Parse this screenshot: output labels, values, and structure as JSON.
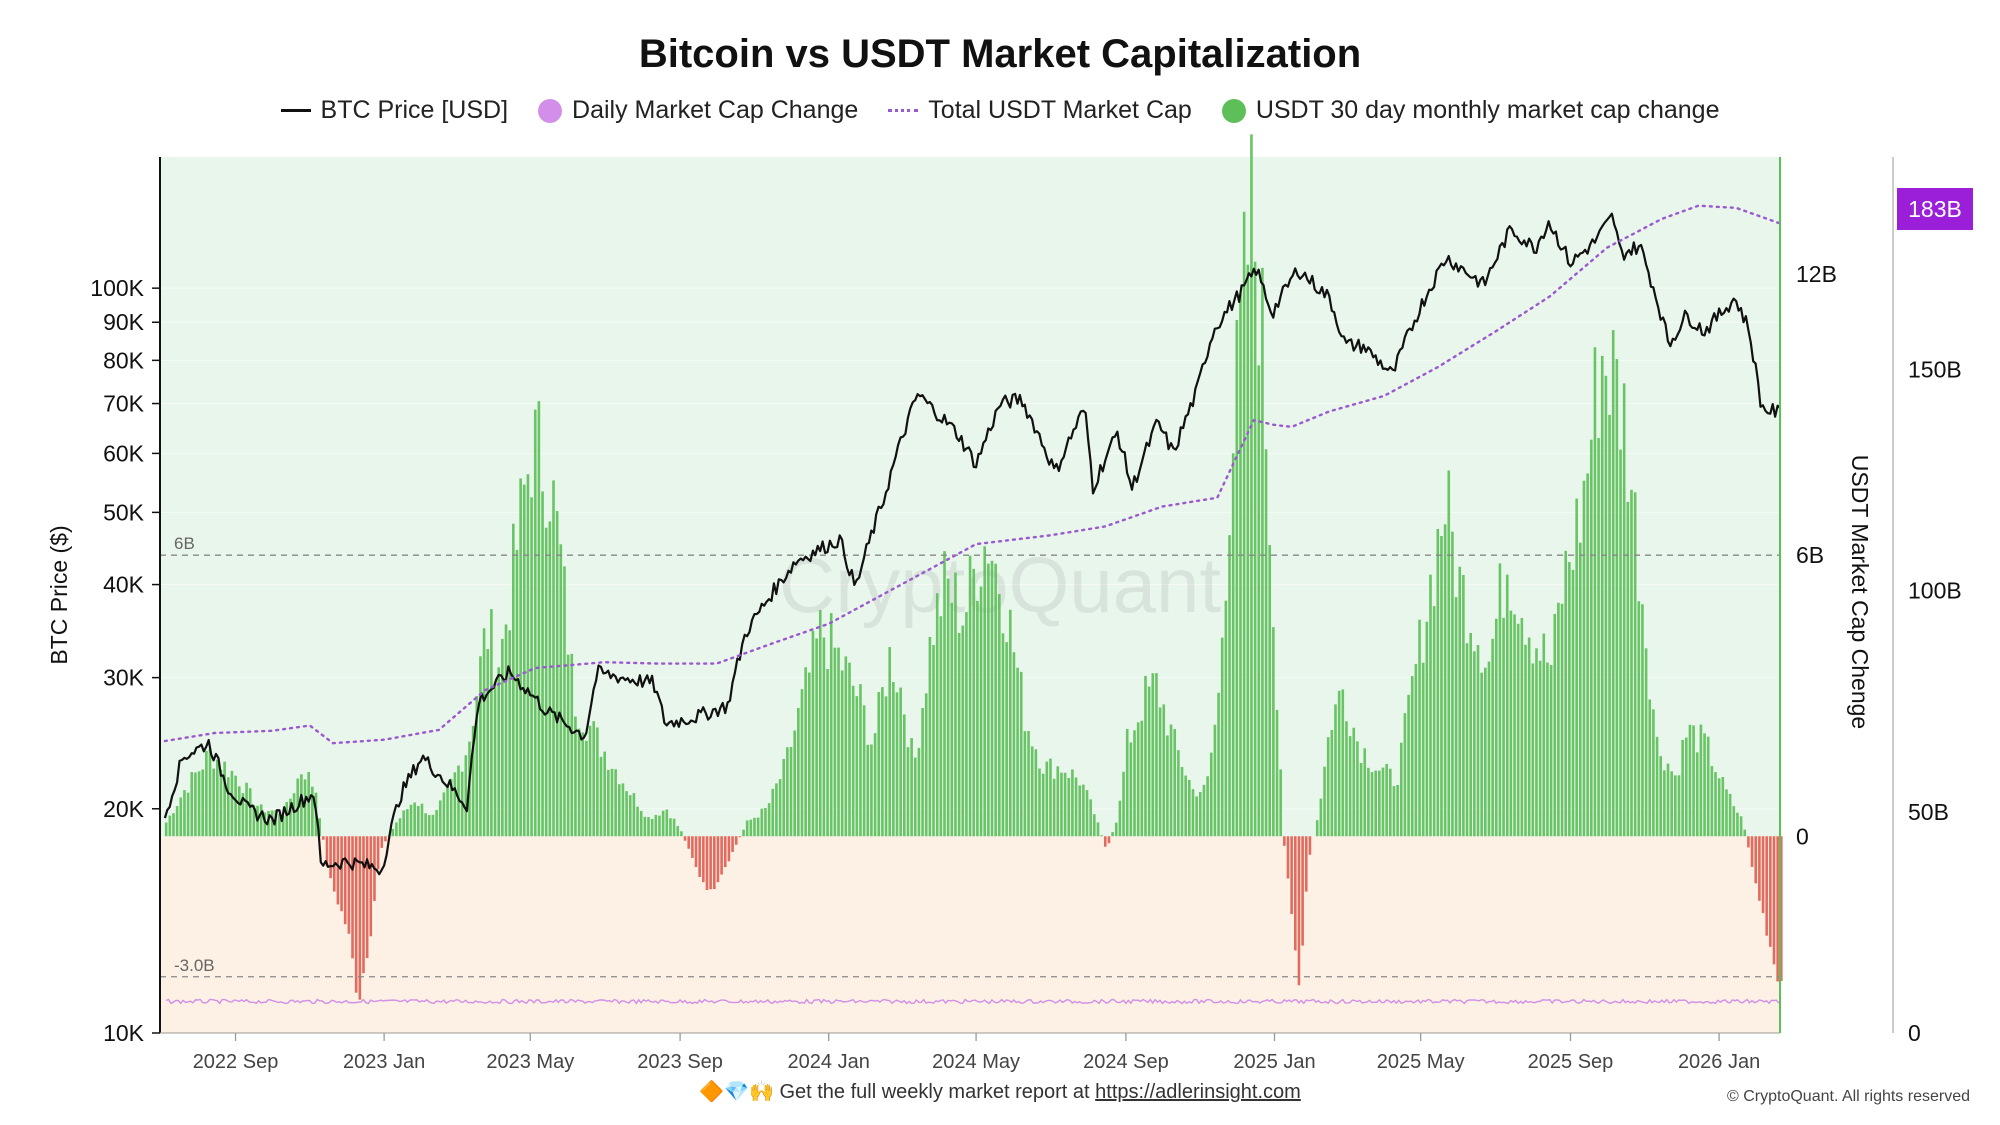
{
  "title": "Bitcoin vs USDT Market Capitalization",
  "legend": [
    {
      "label": "BTC Price [USD]",
      "kind": "line",
      "color": "#111111"
    },
    {
      "label": "Daily Market Cap Change",
      "kind": "dot",
      "color": "#d28ee8"
    },
    {
      "label": "Total USDT Market Cap",
      "kind": "dotted",
      "color": "#9b59d0"
    },
    {
      "label": "USDT 30 day monthly market cap change",
      "kind": "dot",
      "color": "#5cbf58"
    }
  ],
  "footer": {
    "emoji": "🔶💎🙌",
    "text": "Get the full weekly market report at",
    "link": "https://adlerinsight.com"
  },
  "copyright": "© CryptoQuant. All rights reserved",
  "watermark": "CryptoQuant",
  "chart_data": {
    "type": "line",
    "title": "Bitcoin vs USDT Market Capitalization",
    "left_axis": {
      "label": "BTC Price ($)",
      "scale": "log",
      "range": [
        10000,
        150000
      ],
      "ticks": [
        {
          "value": 10000,
          "label": "10K"
        },
        {
          "value": 20000,
          "label": "20K"
        },
        {
          "value": 30000,
          "label": "30K"
        },
        {
          "value": 40000,
          "label": "40K"
        },
        {
          "value": 50000,
          "label": "50K"
        },
        {
          "value": 60000,
          "label": "60K"
        },
        {
          "value": 70000,
          "label": "70K"
        },
        {
          "value": 80000,
          "label": "80K"
        },
        {
          "value": 90000,
          "label": "90K"
        },
        {
          "value": 100000,
          "label": "100K"
        }
      ]
    },
    "right_axis_change": {
      "label": "USDT Market Cap Chenge",
      "range": [
        -4.2,
        14.5
      ],
      "ticks": [
        {
          "value": 0,
          "label": "0"
        },
        {
          "value": 6,
          "label": "6B"
        },
        {
          "value": 12,
          "label": "12B"
        }
      ]
    },
    "right_axis_cap": {
      "range": [
        0,
        198
      ],
      "ticks": [
        {
          "value": 0,
          "label": "0"
        },
        {
          "value": 50,
          "label": "50B"
        },
        {
          "value": 100,
          "label": "100B"
        },
        {
          "value": 150,
          "label": "150B"
        }
      ],
      "current_value": 183,
      "current_label": "183B",
      "current_color": "#9b1fd8"
    },
    "reference_lines": [
      {
        "value": 6,
        "label": "6B"
      },
      {
        "value": -3,
        "label": "-3.0B"
      }
    ],
    "x_axis": {
      "range": [
        "2022-07-01",
        "2026-02-20"
      ],
      "ticks": [
        {
          "date": "2022-09-01",
          "label": "2022 Sep"
        },
        {
          "date": "2023-01-01",
          "label": "2023 Jan"
        },
        {
          "date": "2023-05-01",
          "label": "2023 May"
        },
        {
          "date": "2023-09-01",
          "label": "2023 Sep"
        },
        {
          "date": "2024-01-01",
          "label": "2024 Jan"
        },
        {
          "date": "2024-05-01",
          "label": "2024 May"
        },
        {
          "date": "2024-09-01",
          "label": "2024 Sep"
        },
        {
          "date": "2025-01-01",
          "label": "2025 Jan"
        },
        {
          "date": "2025-05-01",
          "label": "2025 May"
        },
        {
          "date": "2025-09-01",
          "label": "2025 Sep"
        },
        {
          "date": "2026-01-01",
          "label": "2026 Jan"
        }
      ]
    },
    "series": [
      {
        "name": "BTC Price [USD]",
        "type": "line",
        "color": "#111111",
        "points": [
          [
            "2022-07-05",
            19500
          ],
          [
            "2022-07-20",
            23500
          ],
          [
            "2022-08-10",
            24500
          ],
          [
            "2022-08-25",
            21500
          ],
          [
            "2022-09-10",
            20000
          ],
          [
            "2022-10-01",
            19300
          ],
          [
            "2022-10-25",
            20500
          ],
          [
            "2022-11-05",
            21000
          ],
          [
            "2022-11-10",
            16800
          ],
          [
            "2022-12-01",
            17000
          ],
          [
            "2022-12-30",
            16600
          ],
          [
            "2023-01-14",
            20800
          ],
          [
            "2023-02-01",
            23500
          ],
          [
            "2023-03-10",
            20200
          ],
          [
            "2023-03-20",
            28000
          ],
          [
            "2023-04-14",
            30500
          ],
          [
            "2023-05-15",
            27000
          ],
          [
            "2023-06-15",
            25000
          ],
          [
            "2023-06-25",
            30500
          ],
          [
            "2023-07-15",
            30000
          ],
          [
            "2023-08-10",
            29500
          ],
          [
            "2023-08-20",
            26000
          ],
          [
            "2023-09-15",
            26600
          ],
          [
            "2023-10-10",
            27500
          ],
          [
            "2023-10-25",
            34500
          ],
          [
            "2023-12-05",
            43000
          ],
          [
            "2024-01-10",
            46000
          ],
          [
            "2024-01-23",
            39500
          ],
          [
            "2024-02-15",
            52000
          ],
          [
            "2024-03-14",
            72000
          ],
          [
            "2024-04-15",
            64000
          ],
          [
            "2024-05-01",
            58000
          ],
          [
            "2024-05-21",
            70000
          ],
          [
            "2024-06-07",
            71000
          ],
          [
            "2024-07-05",
            56500
          ],
          [
            "2024-07-29",
            69000
          ],
          [
            "2024-08-05",
            54000
          ],
          [
            "2024-08-25",
            64000
          ],
          [
            "2024-09-06",
            53800
          ],
          [
            "2024-09-27",
            66000
          ],
          [
            "2024-10-10",
            60000
          ],
          [
            "2024-10-29",
            72500
          ],
          [
            "2024-11-12",
            88000
          ],
          [
            "2024-12-05",
            99000
          ],
          [
            "2024-12-17",
            106000
          ],
          [
            "2024-12-30",
            92500
          ],
          [
            "2025-01-20",
            106000
          ],
          [
            "2025-02-15",
            97000
          ],
          [
            "2025-02-28",
            84000
          ],
          [
            "2025-03-15",
            83500
          ],
          [
            "2025-04-08",
            76500
          ],
          [
            "2025-05-01",
            94500
          ],
          [
            "2025-05-22",
            110000
          ],
          [
            "2025-06-22",
            101000
          ],
          [
            "2025-07-14",
            120000
          ],
          [
            "2025-08-03",
            113000
          ],
          [
            "2025-08-14",
            123000
          ],
          [
            "2025-09-01",
            108000
          ],
          [
            "2025-09-20",
            115000
          ],
          [
            "2025-10-06",
            125000
          ],
          [
            "2025-10-12",
            111000
          ],
          [
            "2025-10-28",
            114000
          ],
          [
            "2025-11-21",
            84000
          ],
          [
            "2025-12-05",
            92000
          ],
          [
            "2025-12-20",
            87500
          ],
          [
            "2026-01-14",
            97000
          ],
          [
            "2026-01-25",
            88500
          ],
          [
            "2026-02-05",
            69000
          ],
          [
            "2026-02-20",
            68000
          ]
        ]
      },
      {
        "name": "Total USDT Market Cap",
        "type": "dotted-line",
        "color": "#9b59d0",
        "unit": "B",
        "points": [
          [
            "2022-07-05",
            66
          ],
          [
            "2022-08-15",
            67.8
          ],
          [
            "2022-10-01",
            68.3
          ],
          [
            "2022-11-01",
            69.5
          ],
          [
            "2022-11-20",
            65.5
          ],
          [
            "2023-01-01",
            66.3
          ],
          [
            "2023-02-15",
            68.5
          ],
          [
            "2023-03-25",
            77.5
          ],
          [
            "2023-05-05",
            82.5
          ],
          [
            "2023-07-01",
            83.8
          ],
          [
            "2023-08-15",
            83.5
          ],
          [
            "2023-10-01",
            83.5
          ],
          [
            "2023-11-15",
            88
          ],
          [
            "2024-01-01",
            92.5
          ],
          [
            "2024-03-15",
            103.5
          ],
          [
            "2024-05-01",
            110.5
          ],
          [
            "2024-07-01",
            112.5
          ],
          [
            "2024-08-15",
            114.5
          ],
          [
            "2024-10-01",
            119
          ],
          [
            "2024-11-15",
            121
          ],
          [
            "2024-12-15",
            138.5
          ],
          [
            "2024-12-31",
            137.5
          ],
          [
            "2025-01-15",
            137
          ],
          [
            "2025-02-15",
            140.5
          ],
          [
            "2025-04-01",
            144
          ],
          [
            "2025-05-15",
            150.5
          ],
          [
            "2025-07-01",
            158.5
          ],
          [
            "2025-08-15",
            166.5
          ],
          [
            "2025-10-01",
            177.5
          ],
          [
            "2025-11-15",
            184
          ],
          [
            "2025-12-15",
            187
          ],
          [
            "2026-01-15",
            186.5
          ],
          [
            "2026-02-20",
            183
          ]
        ]
      },
      {
        "name": "USDT 30 day monthly market cap change",
        "type": "area",
        "unit": "B",
        "positive_color": "#5cbf58",
        "negative_color": "#e06055",
        "points": [
          [
            "2022-07-05",
            0.3
          ],
          [
            "2022-07-20",
            1.0
          ],
          [
            "2022-08-10",
            1.8
          ],
          [
            "2022-09-01",
            1.3
          ],
          [
            "2022-09-20",
            0.6
          ],
          [
            "2022-10-10",
            0.5
          ],
          [
            "2022-10-25",
            1.5
          ],
          [
            "2022-11-05",
            1.0
          ],
          [
            "2022-11-15",
            -0.8
          ],
          [
            "2022-12-01",
            -2.0
          ],
          [
            "2022-12-10",
            -3.5
          ],
          [
            "2022-12-20",
            -2.0
          ],
          [
            "2022-12-28",
            -0.3
          ],
          [
            "2023-01-10",
            0.3
          ],
          [
            "2023-01-25",
            0.8
          ],
          [
            "2023-02-10",
            0.4
          ],
          [
            "2023-02-25",
            1.2
          ],
          [
            "2023-03-10",
            2.0
          ],
          [
            "2023-03-25",
            4.5
          ],
          [
            "2023-04-05",
            3.8
          ],
          [
            "2023-04-20",
            6.5
          ],
          [
            "2023-05-01",
            8.5
          ],
          [
            "2023-05-15",
            8.0
          ],
          [
            "2023-05-25",
            6.0
          ],
          [
            "2023-06-05",
            3.0
          ],
          [
            "2023-06-15",
            2.5
          ],
          [
            "2023-07-01",
            1.8
          ],
          [
            "2023-07-20",
            1.0
          ],
          [
            "2023-08-05",
            0.4
          ],
          [
            "2023-08-20",
            0.6
          ],
          [
            "2023-09-01",
            0.1
          ],
          [
            "2023-09-15",
            -0.8
          ],
          [
            "2023-09-25",
            -1.2
          ],
          [
            "2023-10-10",
            -0.5
          ],
          [
            "2023-10-25",
            0.3
          ],
          [
            "2023-11-10",
            0.6
          ],
          [
            "2023-11-25",
            1.5
          ],
          [
            "2023-12-10",
            3.0
          ],
          [
            "2023-12-25",
            4.5
          ],
          [
            "2024-01-10",
            3.8
          ],
          [
            "2024-01-25",
            3.0
          ],
          [
            "2024-02-05",
            2.0
          ],
          [
            "2024-02-20",
            4.0
          ],
          [
            "2024-03-01",
            3.0
          ],
          [
            "2024-03-10",
            1.5
          ],
          [
            "2024-03-25",
            4.5
          ],
          [
            "2024-04-05",
            5.5
          ],
          [
            "2024-04-20",
            4.8
          ],
          [
            "2024-05-01",
            6.0
          ],
          [
            "2024-05-10",
            6.5
          ],
          [
            "2024-05-25",
            5.0
          ],
          [
            "2024-06-10",
            2.5
          ],
          [
            "2024-06-25",
            1.5
          ],
          [
            "2024-07-10",
            1.5
          ],
          [
            "2024-07-25",
            1.2
          ],
          [
            "2024-08-05",
            0.5
          ],
          [
            "2024-08-15",
            -0.3
          ],
          [
            "2024-08-25",
            0.5
          ],
          [
            "2024-09-01",
            2.0
          ],
          [
            "2024-09-15",
            3.0
          ],
          [
            "2024-09-25",
            3.3
          ],
          [
            "2024-10-10",
            2.0
          ],
          [
            "2024-10-25",
            1.0
          ],
          [
            "2024-11-05",
            1.0
          ],
          [
            "2024-11-15",
            3.0
          ],
          [
            "2024-11-25",
            8.0
          ],
          [
            "2024-12-05",
            11.5
          ],
          [
            "2024-12-12",
            13.5
          ],
          [
            "2024-12-20",
            11.5
          ],
          [
            "2024-12-30",
            5.0
          ],
          [
            "2025-01-08",
            -0.2
          ],
          [
            "2025-01-15",
            -2.0
          ],
          [
            "2025-01-20",
            -3.2
          ],
          [
            "2025-01-28",
            -0.5
          ],
          [
            "2025-02-05",
            0.5
          ],
          [
            "2025-02-15",
            2.5
          ],
          [
            "2025-02-25",
            3.2
          ],
          [
            "2025-03-10",
            2.0
          ],
          [
            "2025-03-25",
            1.5
          ],
          [
            "2025-04-10",
            1.2
          ],
          [
            "2025-04-25",
            3.5
          ],
          [
            "2025-05-05",
            5.0
          ],
          [
            "2025-05-20",
            7.3
          ],
          [
            "2025-06-01",
            5.5
          ],
          [
            "2025-06-15",
            4.5
          ],
          [
            "2025-06-25",
            3.8
          ],
          [
            "2025-07-10",
            6.0
          ],
          [
            "2025-07-20",
            5.2
          ],
          [
            "2025-08-01",
            4.3
          ],
          [
            "2025-08-15",
            3.7
          ],
          [
            "2025-08-25",
            5.5
          ],
          [
            "2025-09-10",
            7.2
          ],
          [
            "2025-09-25",
            10.5
          ],
          [
            "2025-10-05",
            10.0
          ],
          [
            "2025-10-15",
            9.0
          ],
          [
            "2025-10-28",
            5.5
          ],
          [
            "2025-11-10",
            2.0
          ],
          [
            "2025-11-25",
            1.3
          ],
          [
            "2025-12-05",
            2.3
          ],
          [
            "2025-12-20",
            2.0
          ],
          [
            "2026-01-05",
            1.0
          ],
          [
            "2026-01-20",
            0.3
          ],
          [
            "2026-01-28",
            -0.8
          ],
          [
            "2026-02-08",
            -2.0
          ],
          [
            "2026-02-15",
            -2.8
          ],
          [
            "2026-02-20",
            -3.1
          ]
        ]
      }
    ]
  }
}
